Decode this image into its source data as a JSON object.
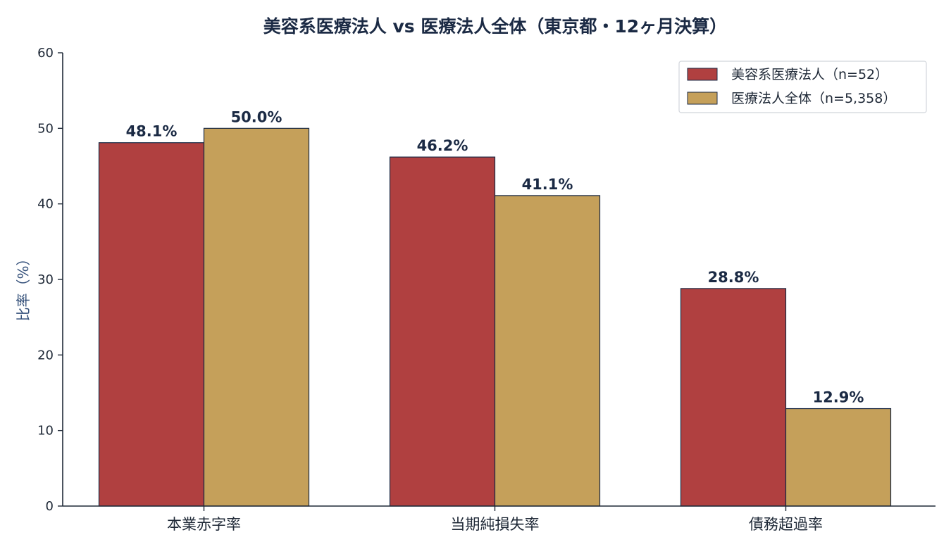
{
  "chart_data": {
    "type": "bar",
    "title": "美容系医療法人 vs 医療法人全体（東京都・12ヶ月決算）",
    "xlabel": "",
    "ylabel": "比率（%）",
    "ylim": [
      0,
      60
    ],
    "yticks": [
      0,
      10,
      20,
      30,
      40,
      50,
      60
    ],
    "categories": [
      "本業赤字率",
      "当期純損失率",
      "債務超過率"
    ],
    "series": [
      {
        "name": "美容系医療法人（n=52）",
        "color": "#b04040",
        "values": [
          48.1,
          46.2,
          28.8
        ],
        "labels": [
          "48.1%",
          "46.2%",
          "28.8%"
        ]
      },
      {
        "name": "医療法人全体（n=5,358）",
        "color": "#c5a05a",
        "values": [
          50.0,
          41.1,
          12.9
        ],
        "labels": [
          "50.0%",
          "41.1%",
          "12.9%"
        ]
      }
    ],
    "legend_position": "top-right",
    "grid": false,
    "bar_edge_color": "#1b2a44"
  }
}
